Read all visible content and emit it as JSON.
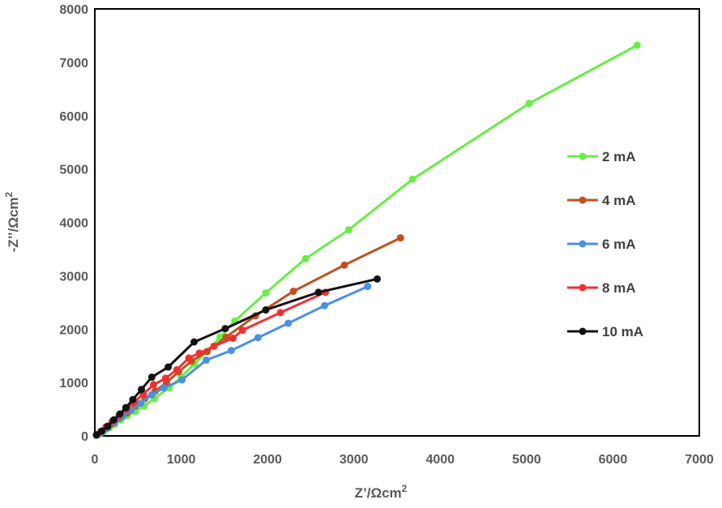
{
  "chart_data": {
    "type": "scatter",
    "xlabel": "Z’/Ωcm",
    "xlabel_sup": "2",
    "ylabel": "-Z’’/Ωcm",
    "ylabel_sup": "2",
    "xlim": [
      0,
      7000
    ],
    "ylim": [
      0,
      8000
    ],
    "x_ticks": [
      0,
      1000,
      2000,
      3000,
      4000,
      5000,
      6000,
      7000
    ],
    "y_ticks": [
      0,
      1000,
      2000,
      3000,
      4000,
      5000,
      6000,
      7000,
      8000
    ],
    "grid": false,
    "legend_position": "right",
    "series": [
      {
        "name": "2 mA",
        "color": "#66ee44",
        "points": [
          [
            20,
            10
          ],
          [
            60,
            40
          ],
          [
            110,
            90
          ],
          [
            170,
            150
          ],
          [
            230,
            220
          ],
          [
            300,
            300
          ],
          [
            380,
            380
          ],
          [
            470,
            460
          ],
          [
            570,
            560
          ],
          [
            690,
            700
          ],
          [
            860,
            900
          ],
          [
            1000,
            1100
          ],
          [
            1150,
            1350
          ],
          [
            1300,
            1580
          ],
          [
            1450,
            1850
          ],
          [
            1620,
            2150
          ],
          [
            1980,
            2680
          ],
          [
            2440,
            3320
          ],
          [
            2940,
            3860
          ],
          [
            3680,
            4810
          ],
          [
            5030,
            6230
          ],
          [
            6280,
            7320
          ]
        ]
      },
      {
        "name": "4 mA",
        "color": "#c0501e",
        "points": [
          [
            20,
            10
          ],
          [
            70,
            60
          ],
          [
            130,
            140
          ],
          [
            200,
            230
          ],
          [
            280,
            330
          ],
          [
            370,
            430
          ],
          [
            470,
            560
          ],
          [
            580,
            700
          ],
          [
            700,
            840
          ],
          [
            830,
            1000
          ],
          [
            970,
            1200
          ],
          [
            1120,
            1400
          ],
          [
            1300,
            1580
          ],
          [
            1520,
            1850
          ],
          [
            1860,
            2250
          ],
          [
            2300,
            2710
          ],
          [
            2890,
            3200
          ],
          [
            3540,
            3710
          ]
        ]
      },
      {
        "name": "6 mA",
        "color": "#4a90e2",
        "points": [
          [
            20,
            10
          ],
          [
            80,
            60
          ],
          [
            150,
            150
          ],
          [
            230,
            250
          ],
          [
            320,
            360
          ],
          [
            420,
            480
          ],
          [
            530,
            610
          ],
          [
            660,
            770
          ],
          [
            800,
            900
          ],
          [
            1010,
            1050
          ],
          [
            1290,
            1420
          ],
          [
            1580,
            1600
          ],
          [
            1890,
            1840
          ],
          [
            2240,
            2110
          ],
          [
            2660,
            2440
          ],
          [
            3160,
            2800
          ]
        ]
      },
      {
        "name": "8 mA",
        "color": "#f03030",
        "points": [
          [
            20,
            20
          ],
          [
            70,
            80
          ],
          [
            130,
            170
          ],
          [
            200,
            270
          ],
          [
            280,
            380
          ],
          [
            370,
            500
          ],
          [
            460,
            640
          ],
          [
            560,
            780
          ],
          [
            680,
            960
          ],
          [
            820,
            1080
          ],
          [
            950,
            1240
          ],
          [
            1090,
            1460
          ],
          [
            1210,
            1550
          ],
          [
            1380,
            1680
          ],
          [
            1600,
            1830
          ],
          [
            1710,
            1980
          ],
          [
            2150,
            2310
          ],
          [
            2670,
            2690
          ]
        ]
      },
      {
        "name": "10 mA",
        "color": "#111111",
        "points": [
          [
            20,
            20
          ],
          [
            80,
            90
          ],
          [
            150,
            180
          ],
          [
            220,
            300
          ],
          [
            290,
            410
          ],
          [
            360,
            530
          ],
          [
            440,
            680
          ],
          [
            540,
            870
          ],
          [
            660,
            1100
          ],
          [
            850,
            1290
          ],
          [
            1150,
            1760
          ],
          [
            1510,
            2010
          ],
          [
            1980,
            2360
          ],
          [
            2590,
            2690
          ],
          [
            3270,
            2940
          ]
        ]
      }
    ]
  }
}
